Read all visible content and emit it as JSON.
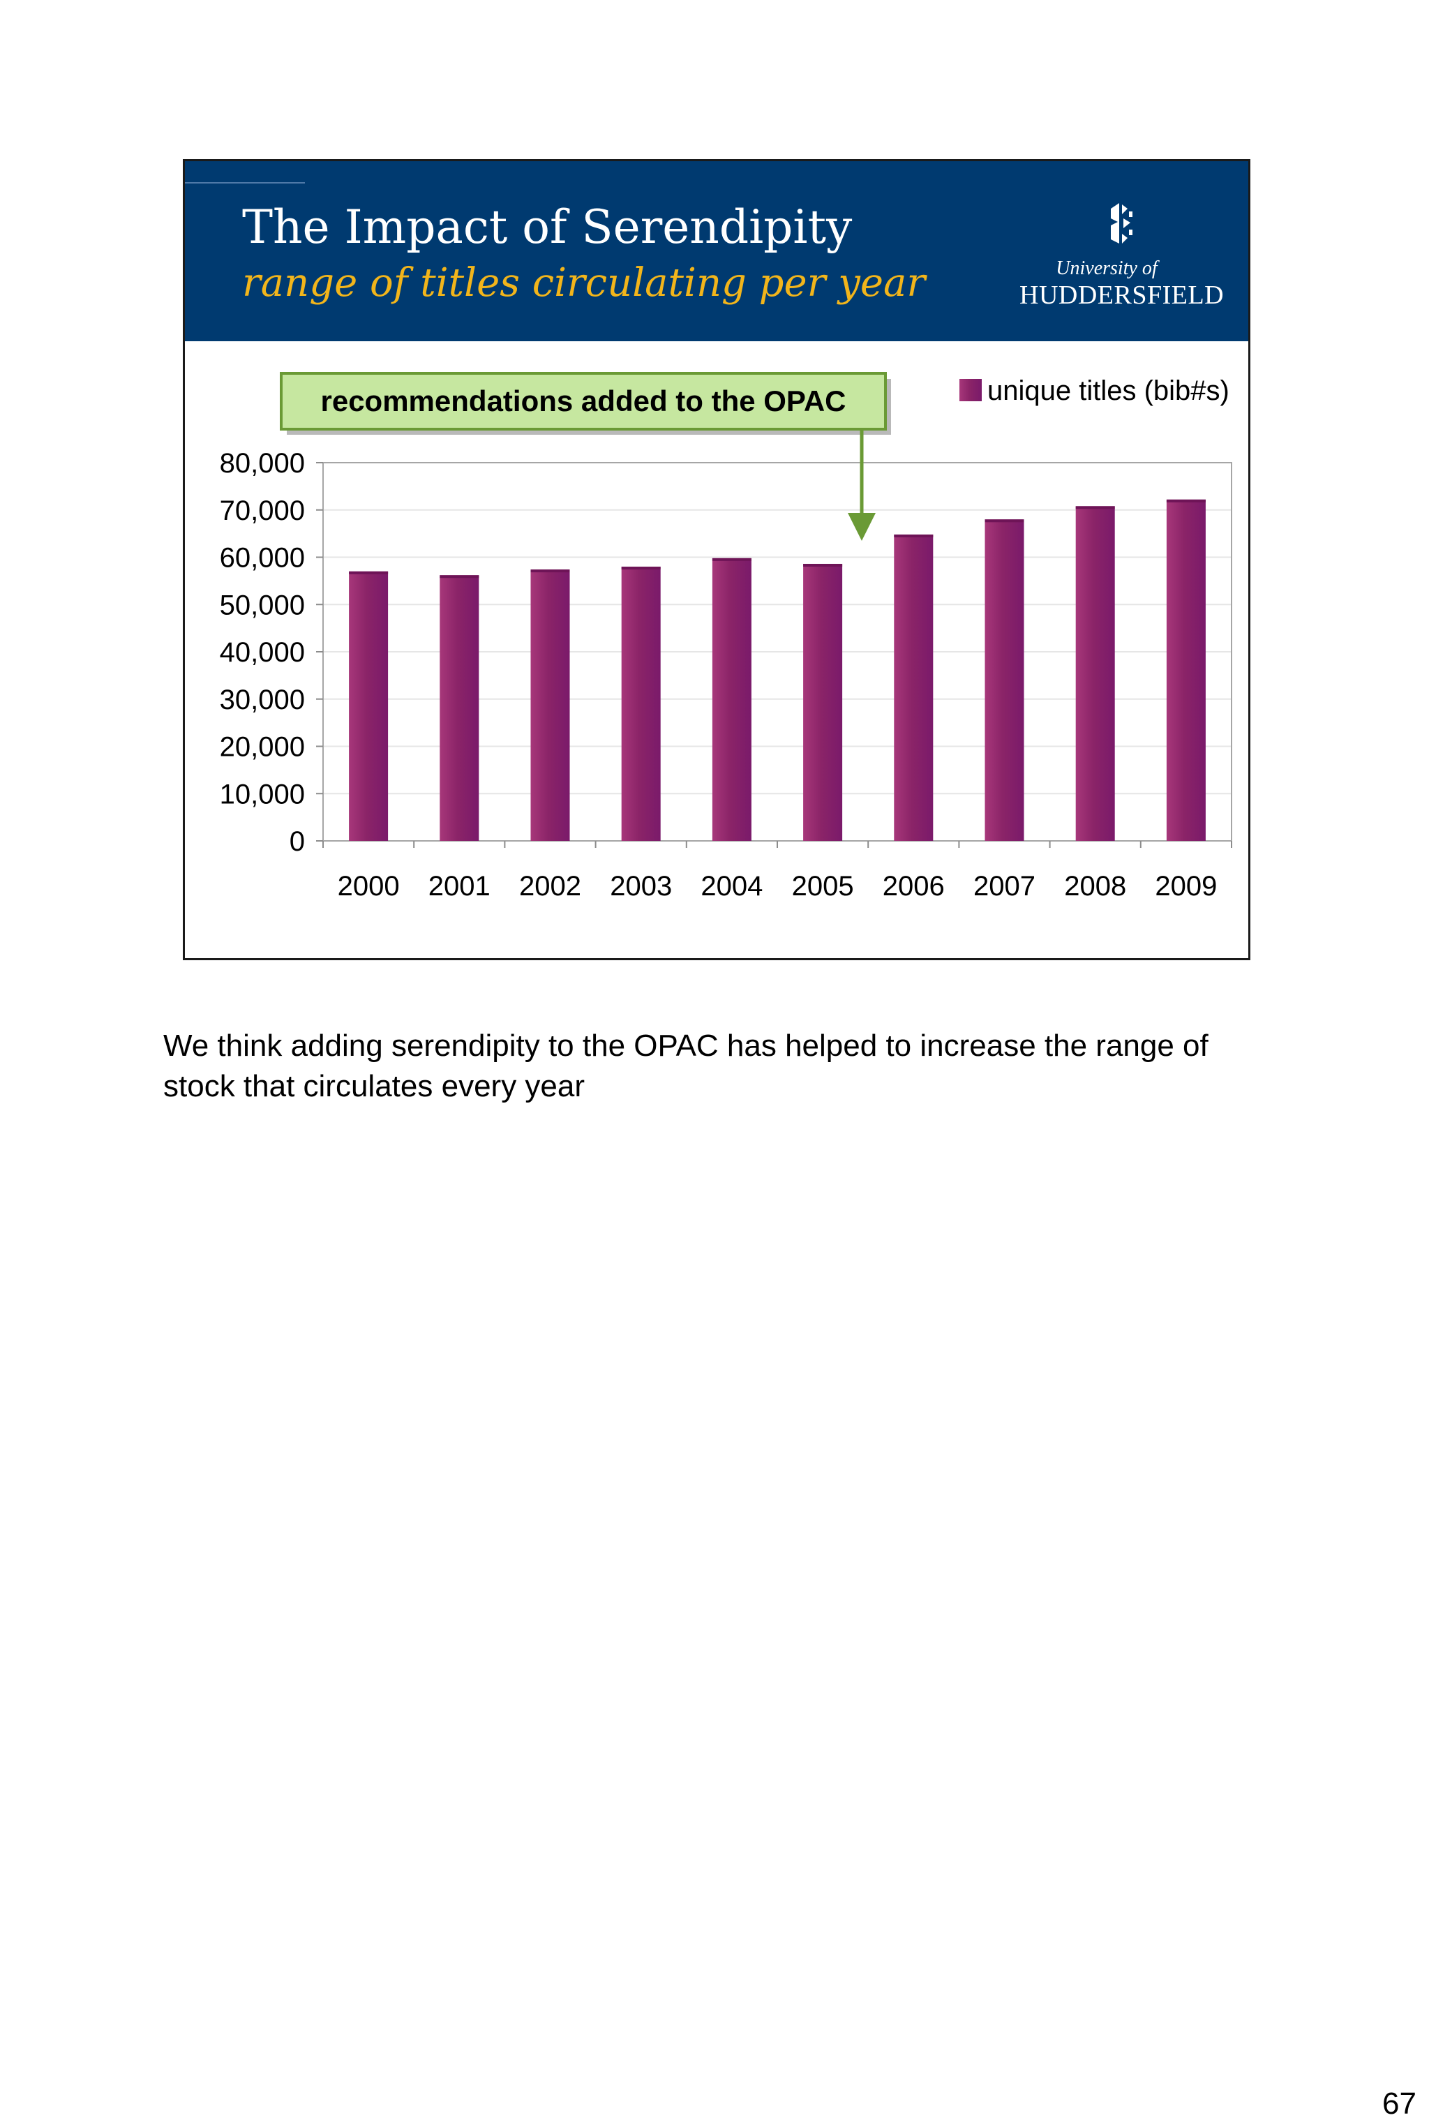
{
  "slide": {
    "title": "The Impact of Serendipity",
    "subtitle": "range of titles circulating per year",
    "logo": {
      "line1": "University of",
      "line2": "HUDDERSFIELD"
    }
  },
  "notes": {
    "text": "We think adding serendipity to the OPAC has helped to increase the range of stock that circulates every year"
  },
  "page_number": "67",
  "colors": {
    "header_bg": "#003a70",
    "subtitle": "#f2b51b",
    "bar": "#8b2468",
    "callout_bg": "#c6e7a0",
    "callout_border": "#6a9a35"
  },
  "chart_data": {
    "type": "bar",
    "title": "The Impact of Serendipity",
    "subtitle": "range of titles circulating per year",
    "categories": [
      "2000",
      "2001",
      "2002",
      "2003",
      "2004",
      "2005",
      "2006",
      "2007",
      "2008",
      "2009"
    ],
    "series": [
      {
        "name": "unique titles (bib#s)",
        "values": [
          57000,
          56200,
          57400,
          58000,
          59800,
          58600,
          64800,
          68000,
          70800,
          72200
        ]
      }
    ],
    "yticks": [
      "0",
      "10,000",
      "20,000",
      "30,000",
      "40,000",
      "50,000",
      "60,000",
      "70,000",
      "80,000"
    ],
    "ylim": [
      0,
      80000
    ],
    "xlabel": "",
    "ylabel": "",
    "legend": "top-right",
    "annotation": {
      "text": "recommendations added to the OPAC",
      "points_to": "between 2005 and 2006"
    }
  }
}
